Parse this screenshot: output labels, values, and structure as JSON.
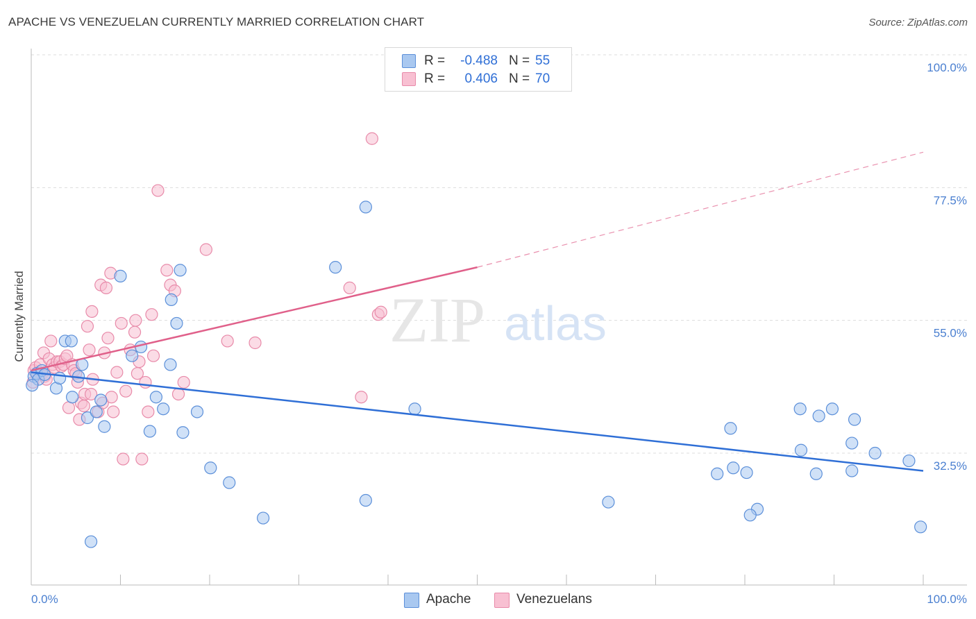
{
  "header": {
    "title": "APACHE VS VENEZUELAN CURRENTLY MARRIED CORRELATION CHART",
    "source": "Source: ZipAtlas.com"
  },
  "watermark": {
    "zip": "ZIP",
    "atlas": "atlas"
  },
  "colors": {
    "apache_fill": "#a9c8f0",
    "apache_stroke": "#5b8fd9",
    "apache_line": "#2f6fd6",
    "venez_fill": "#f8c0d2",
    "venez_stroke": "#e88aa9",
    "venez_line": "#e0608a",
    "tick_text": "#4a7fd0",
    "grid": "#dcdcdc"
  },
  "legend": {
    "apache": {
      "r_label": "R =",
      "r_value": "-0.488",
      "n_label": "N =",
      "n_value": "55"
    },
    "venezuelans": {
      "r_label": "R =",
      "r_value": "0.406",
      "n_label": "N =",
      "n_value": "70"
    }
  },
  "bottom_legend": {
    "apache": "Apache",
    "venezuelans": "Venezuelans"
  },
  "chart_data": {
    "type": "scatter",
    "title": "APACHE VS VENEZUELAN CURRENTLY MARRIED CORRELATION CHART",
    "xlabel": "",
    "ylabel": "Currently Married",
    "xlim": [
      0,
      100
    ],
    "ylim": [
      14,
      103
    ],
    "x_tick_labels": [
      "0.0%",
      "100.0%"
    ],
    "y_ticks": [
      {
        "value": 32.5,
        "label": "32.5%"
      },
      {
        "value": 55.0,
        "label": "55.0%"
      },
      {
        "value": 77.5,
        "label": "77.5%"
      },
      {
        "value": 100.0,
        "label": "100.0%"
      }
    ],
    "grid": true,
    "series": [
      {
        "name": "Apache",
        "points": [
          [
            0.3,
            45.5
          ],
          [
            0.6,
            46.0
          ],
          [
            0.8,
            45.0
          ],
          [
            1.2,
            46.5
          ],
          [
            1.5,
            45.8
          ],
          [
            2.8,
            43.5
          ],
          [
            3.2,
            45.2
          ],
          [
            3.8,
            51.5
          ],
          [
            4.5,
            51.5
          ],
          [
            4.6,
            42.0
          ],
          [
            5.3,
            45.5
          ],
          [
            5.7,
            47.5
          ],
          [
            6.3,
            38.5
          ],
          [
            6.7,
            17.5
          ],
          [
            7.3,
            39.5
          ],
          [
            7.8,
            41.5
          ],
          [
            8.2,
            37.0
          ],
          [
            10.0,
            62.5
          ],
          [
            11.3,
            49.0
          ],
          [
            12.3,
            50.5
          ],
          [
            13.3,
            36.2
          ],
          [
            14.0,
            42.0
          ],
          [
            14.8,
            40.0
          ],
          [
            15.7,
            58.5
          ],
          [
            16.3,
            54.5
          ],
          [
            16.7,
            63.5
          ],
          [
            17.0,
            36.0
          ],
          [
            15.6,
            47.5
          ],
          [
            18.6,
            39.5
          ],
          [
            20.1,
            30.0
          ],
          [
            22.2,
            27.5
          ],
          [
            26.0,
            21.5
          ],
          [
            34.1,
            64.0
          ],
          [
            37.5,
            74.2
          ],
          [
            37.5,
            24.5
          ],
          [
            43.0,
            40.0
          ],
          [
            64.7,
            24.2
          ],
          [
            76.9,
            29.0
          ],
          [
            78.4,
            36.7
          ],
          [
            78.7,
            30.0
          ],
          [
            80.2,
            29.2
          ],
          [
            81.4,
            23.0
          ],
          [
            80.6,
            22.0
          ],
          [
            86.2,
            40.0
          ],
          [
            86.3,
            33.0
          ],
          [
            88.0,
            29.0
          ],
          [
            88.3,
            38.8
          ],
          [
            89.8,
            40.0
          ],
          [
            92.0,
            34.2
          ],
          [
            92.3,
            38.2
          ],
          [
            92.0,
            29.5
          ],
          [
            94.6,
            32.5
          ],
          [
            98.4,
            31.2
          ],
          [
            99.7,
            20.0
          ],
          [
            0.1,
            44.0
          ]
        ]
      },
      {
        "name": "Venezuelans",
        "points": [
          [
            0.3,
            46.5
          ],
          [
            0.5,
            47.0
          ],
          [
            0.8,
            46.2
          ],
          [
            1.0,
            47.5
          ],
          [
            1.2,
            46.0
          ],
          [
            1.4,
            49.5
          ],
          [
            1.5,
            45.5
          ],
          [
            1.7,
            45.0
          ],
          [
            2.0,
            48.5
          ],
          [
            2.2,
            51.5
          ],
          [
            2.4,
            47.5
          ],
          [
            2.6,
            47.0
          ],
          [
            2.9,
            48.0
          ],
          [
            3.2,
            48.0
          ],
          [
            3.4,
            47.2
          ],
          [
            3.6,
            47.5
          ],
          [
            3.8,
            48.5
          ],
          [
            4.0,
            49.0
          ],
          [
            4.2,
            40.2
          ],
          [
            4.6,
            47.5
          ],
          [
            4.8,
            46.5
          ],
          [
            5.0,
            46.0
          ],
          [
            5.2,
            44.5
          ],
          [
            5.6,
            41.0
          ],
          [
            5.9,
            40.5
          ],
          [
            6.0,
            42.5
          ],
          [
            6.3,
            54.0
          ],
          [
            6.5,
            50.0
          ],
          [
            6.7,
            42.5
          ],
          [
            6.8,
            56.5
          ],
          [
            6.9,
            45.0
          ],
          [
            7.5,
            39.5
          ],
          [
            7.8,
            61.0
          ],
          [
            8.0,
            41.0
          ],
          [
            8.2,
            49.5
          ],
          [
            8.4,
            60.5
          ],
          [
            8.6,
            52.0
          ],
          [
            8.9,
            63.0
          ],
          [
            9.2,
            39.5
          ],
          [
            9.6,
            46.2
          ],
          [
            10.1,
            54.5
          ],
          [
            10.3,
            31.5
          ],
          [
            10.6,
            43.0
          ],
          [
            11.1,
            50.0
          ],
          [
            11.7,
            55.0
          ],
          [
            11.6,
            53.0
          ],
          [
            12.1,
            48.0
          ],
          [
            12.4,
            31.5
          ],
          [
            12.8,
            44.5
          ],
          [
            13.1,
            39.5
          ],
          [
            13.5,
            56.0
          ],
          [
            14.2,
            77.0
          ],
          [
            15.2,
            63.5
          ],
          [
            15.6,
            61.0
          ],
          [
            16.1,
            60.0
          ],
          [
            16.5,
            42.5
          ],
          [
            17.1,
            44.5
          ],
          [
            19.6,
            67.0
          ],
          [
            22.0,
            51.5
          ],
          [
            25.1,
            51.2
          ],
          [
            35.7,
            60.5
          ],
          [
            37.0,
            42.0
          ],
          [
            38.2,
            85.8
          ],
          [
            38.9,
            56.0
          ],
          [
            39.2,
            56.4
          ],
          [
            0.2,
            44.5
          ],
          [
            11.9,
            46.0
          ],
          [
            13.7,
            49.0
          ],
          [
            5.4,
            38.2
          ],
          [
            9.0,
            42.0
          ]
        ]
      }
    ],
    "trend_lines": [
      {
        "series": "Apache",
        "x": [
          0,
          100
        ],
        "y": [
          46.2,
          29.5
        ],
        "style": "solid"
      },
      {
        "series": "Venezuelans",
        "x_solid": [
          0,
          50
        ],
        "y_solid": [
          46.5,
          64.0
        ],
        "x_dashed": [
          50,
          100
        ],
        "y_dashed": [
          64.0,
          83.5
        ]
      }
    ]
  }
}
